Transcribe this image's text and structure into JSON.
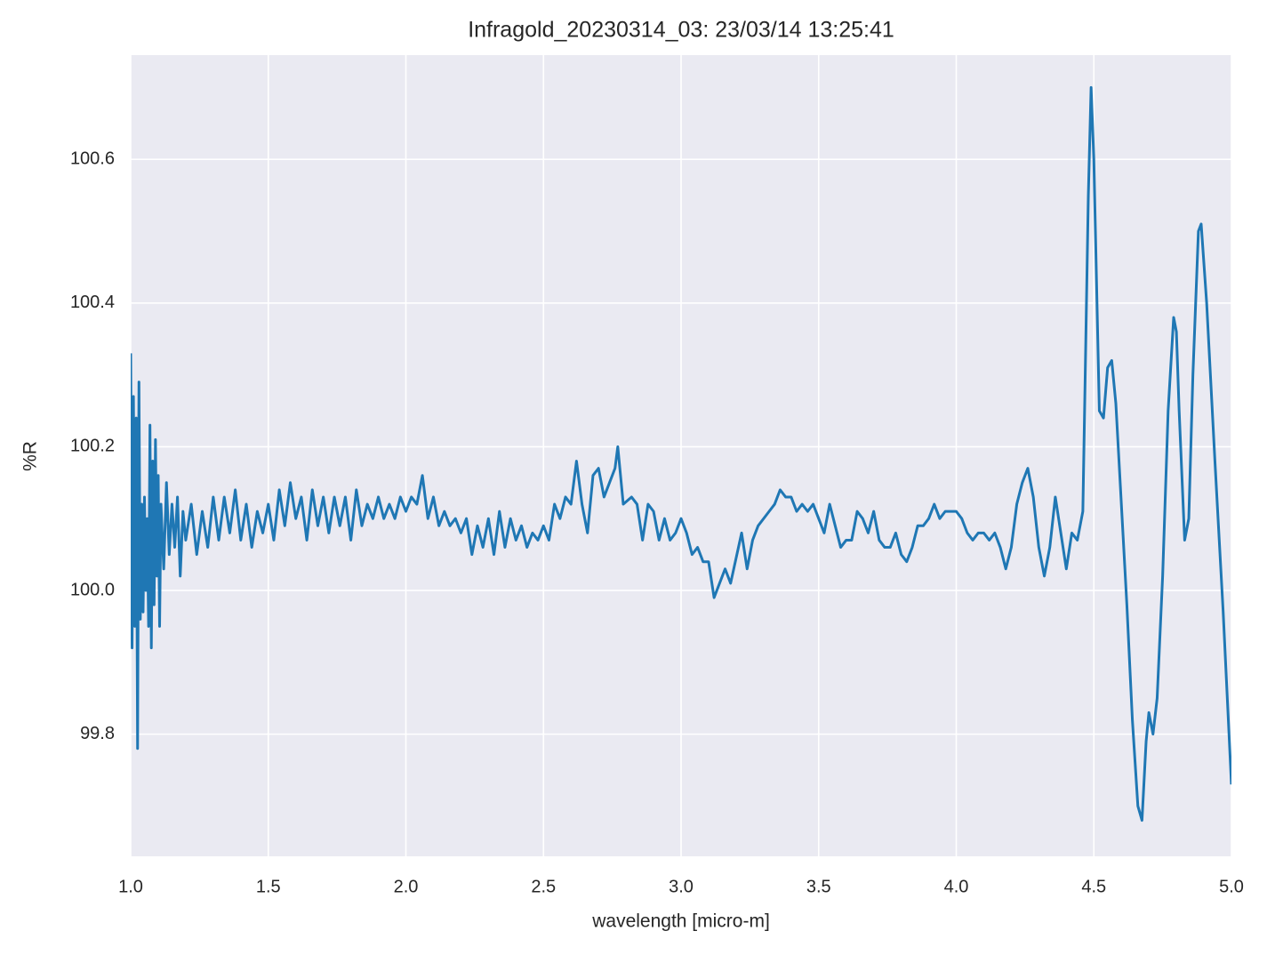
{
  "chart_data": {
    "type": "line",
    "title": "Infragold_20230314_03:  23/03/14 13:25:41",
    "x_label": "wavelength [micro-m]",
    "y_label": "%R",
    "color": "#1f77b4",
    "grid": true,
    "xlim": [
      1,
      5
    ],
    "ylim": [
      99.63,
      100.745
    ],
    "xticks": [
      {
        "value": 1,
        "label": "1.0"
      },
      1.5,
      {
        "value": 2,
        "label": "2.0"
      },
      2.5,
      {
        "value": 3,
        "label": "3.0"
      },
      3.5,
      {
        "value": 4,
        "label": "4.0"
      },
      4.5,
      {
        "value": 5,
        "label": "5.0"
      }
    ],
    "yticks": [
      99.8,
      {
        "value": 100,
        "label": "100.0"
      },
      100.2,
      100.4,
      100.6
    ],
    "x": [
      1.0,
      1.005,
      1.01,
      1.015,
      1.02,
      1.025,
      1.03,
      1.035,
      1.04,
      1.045,
      1.05,
      1.055,
      1.06,
      1.065,
      1.07,
      1.075,
      1.08,
      1.085,
      1.09,
      1.095,
      1.1,
      1.105,
      1.11,
      1.12,
      1.13,
      1.14,
      1.15,
      1.16,
      1.17,
      1.18,
      1.19,
      1.2,
      1.22,
      1.24,
      1.26,
      1.28,
      1.3,
      1.32,
      1.34,
      1.36,
      1.38,
      1.4,
      1.42,
      1.44,
      1.46,
      1.48,
      1.5,
      1.52,
      1.54,
      1.56,
      1.58,
      1.6,
      1.62,
      1.64,
      1.66,
      1.68,
      1.7,
      1.72,
      1.74,
      1.76,
      1.78,
      1.8,
      1.82,
      1.84,
      1.86,
      1.88,
      1.9,
      1.92,
      1.94,
      1.96,
      1.98,
      2.0,
      2.02,
      2.04,
      2.06,
      2.08,
      2.1,
      2.12,
      2.14,
      2.16,
      2.18,
      2.2,
      2.22,
      2.24,
      2.26,
      2.28,
      2.3,
      2.32,
      2.34,
      2.36,
      2.38,
      2.4,
      2.42,
      2.44,
      2.46,
      2.48,
      2.5,
      2.52,
      2.54,
      2.56,
      2.58,
      2.6,
      2.62,
      2.64,
      2.66,
      2.68,
      2.7,
      2.72,
      2.74,
      2.76,
      2.77,
      2.79,
      2.82,
      2.84,
      2.86,
      2.88,
      2.9,
      2.92,
      2.94,
      2.96,
      2.98,
      3.0,
      3.02,
      3.04,
      3.06,
      3.08,
      3.1,
      3.12,
      3.14,
      3.16,
      3.18,
      3.22,
      3.24,
      3.26,
      3.28,
      3.32,
      3.34,
      3.36,
      3.38,
      3.4,
      3.42,
      3.44,
      3.46,
      3.48,
      3.5,
      3.52,
      3.54,
      3.56,
      3.58,
      3.6,
      3.62,
      3.64,
      3.66,
      3.68,
      3.7,
      3.72,
      3.74,
      3.76,
      3.78,
      3.8,
      3.82,
      3.84,
      3.86,
      3.88,
      3.9,
      3.92,
      3.94,
      3.96,
      3.98,
      4.0,
      4.02,
      4.04,
      4.06,
      4.08,
      4.1,
      4.12,
      4.14,
      4.16,
      4.18,
      4.2,
      4.22,
      4.24,
      4.26,
      4.28,
      4.3,
      4.32,
      4.34,
      4.36,
      4.38,
      4.4,
      4.42,
      4.44,
      4.46,
      4.48,
      4.49,
      4.5,
      4.52,
      4.535,
      4.55,
      4.565,
      4.58,
      4.6,
      4.62,
      4.64,
      4.66,
      4.675,
      4.69,
      4.7,
      4.715,
      4.73,
      4.75,
      4.77,
      4.79,
      4.8,
      4.81,
      4.83,
      4.845,
      4.86,
      4.88,
      4.89,
      4.91,
      4.94,
      4.97,
      5.0
    ],
    "values": [
      100.33,
      99.92,
      100.27,
      99.95,
      100.24,
      99.78,
      100.29,
      99.96,
      100.12,
      99.97,
      100.13,
      100.0,
      100.1,
      99.95,
      100.23,
      99.92,
      100.18,
      99.98,
      100.21,
      100.02,
      100.16,
      99.95,
      100.12,
      100.03,
      100.15,
      100.05,
      100.12,
      100.06,
      100.13,
      100.02,
      100.11,
      100.07,
      100.12,
      100.05,
      100.11,
      100.06,
      100.13,
      100.07,
      100.13,
      100.08,
      100.14,
      100.07,
      100.12,
      100.06,
      100.11,
      100.08,
      100.12,
      100.07,
      100.14,
      100.09,
      100.15,
      100.1,
      100.13,
      100.07,
      100.14,
      100.09,
      100.13,
      100.08,
      100.13,
      100.09,
      100.13,
      100.07,
      100.14,
      100.09,
      100.12,
      100.1,
      100.13,
      100.1,
      100.12,
      100.1,
      100.13,
      100.11,
      100.13,
      100.12,
      100.16,
      100.1,
      100.13,
      100.09,
      100.11,
      100.09,
      100.1,
      100.08,
      100.1,
      100.05,
      100.09,
      100.06,
      100.1,
      100.05,
      100.11,
      100.06,
      100.1,
      100.07,
      100.09,
      100.06,
      100.08,
      100.07,
      100.09,
      100.07,
      100.12,
      100.1,
      100.13,
      100.12,
      100.18,
      100.12,
      100.08,
      100.16,
      100.17,
      100.13,
      100.15,
      100.17,
      100.2,
      100.12,
      100.13,
      100.12,
      100.07,
      100.12,
      100.11,
      100.07,
      100.1,
      100.07,
      100.08,
      100.1,
      100.08,
      100.05,
      100.06,
      100.04,
      100.04,
      99.99,
      100.01,
      100.03,
      100.01,
      100.08,
      100.03,
      100.07,
      100.09,
      100.11,
      100.12,
      100.14,
      100.13,
      100.13,
      100.11,
      100.12,
      100.11,
      100.12,
      100.1,
      100.08,
      100.12,
      100.09,
      100.06,
      100.07,
      100.07,
      100.11,
      100.1,
      100.08,
      100.11,
      100.07,
      100.06,
      100.06,
      100.08,
      100.05,
      100.04,
      100.06,
      100.09,
      100.09,
      100.1,
      100.12,
      100.1,
      100.11,
      100.11,
      100.11,
      100.1,
      100.08,
      100.07,
      100.08,
      100.08,
      100.07,
      100.08,
      100.06,
      100.03,
      100.06,
      100.12,
      100.15,
      100.17,
      100.13,
      100.06,
      100.02,
      100.06,
      100.13,
      100.08,
      100.03,
      100.08,
      100.07,
      100.11,
      100.55,
      100.7,
      100.6,
      100.25,
      100.24,
      100.31,
      100.32,
      100.26,
      100.12,
      99.98,
      99.82,
      99.7,
      99.68,
      99.79,
      99.83,
      99.8,
      99.85,
      100.02,
      100.25,
      100.38,
      100.36,
      100.25,
      100.07,
      100.1,
      100.3,
      100.5,
      100.51,
      100.4,
      100.18,
      99.97,
      99.73
    ]
  }
}
